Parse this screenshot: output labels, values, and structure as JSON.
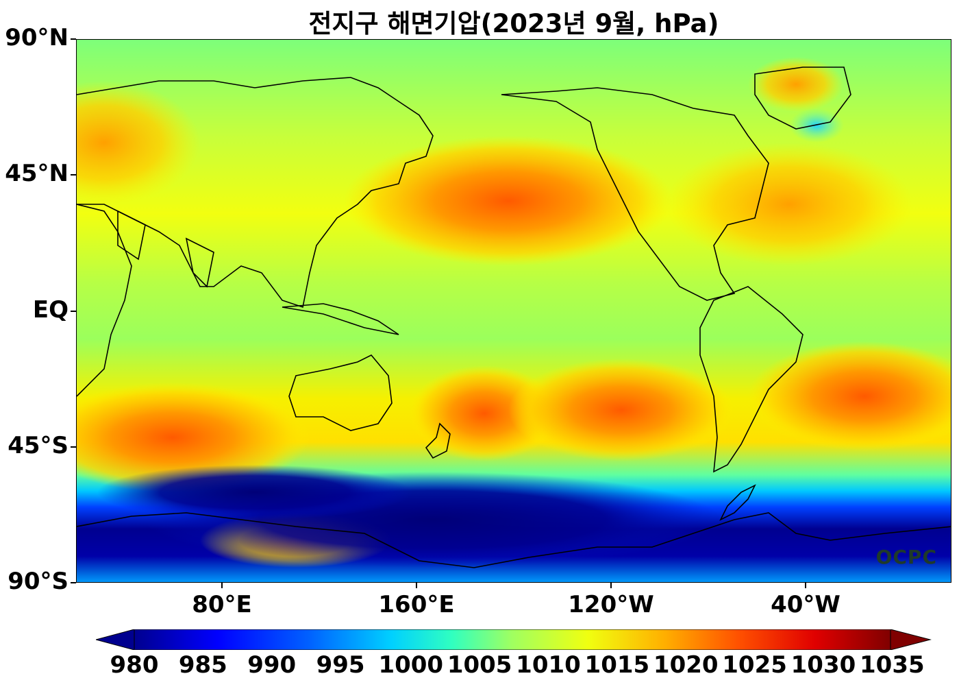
{
  "title": "전지구 해면기압(2023년 9월, hPa)",
  "logo_text": "OCPC",
  "lat_ticks": [
    {
      "label": "90°N",
      "lat": 90
    },
    {
      "label": "45°N",
      "lat": 45
    },
    {
      "label": "EQ",
      "lat": 0
    },
    {
      "label": "45°S",
      "lat": -45
    },
    {
      "label": "90°S",
      "lat": -90
    }
  ],
  "lon_ticks": [
    {
      "label": "80°E",
      "lon": 80
    },
    {
      "label": "160°E",
      "lon": 160
    },
    {
      "label": "120°W",
      "lon": -120
    },
    {
      "label": "40°W",
      "lon": -40
    }
  ],
  "colorbar": {
    "min": 980,
    "max": 1035,
    "ticks": [
      "980",
      "985",
      "990",
      "995",
      "1000",
      "1005",
      "1010",
      "1015",
      "1020",
      "1025",
      "1030",
      "1035"
    ],
    "colormap": "jet",
    "extend": "both"
  }
}
